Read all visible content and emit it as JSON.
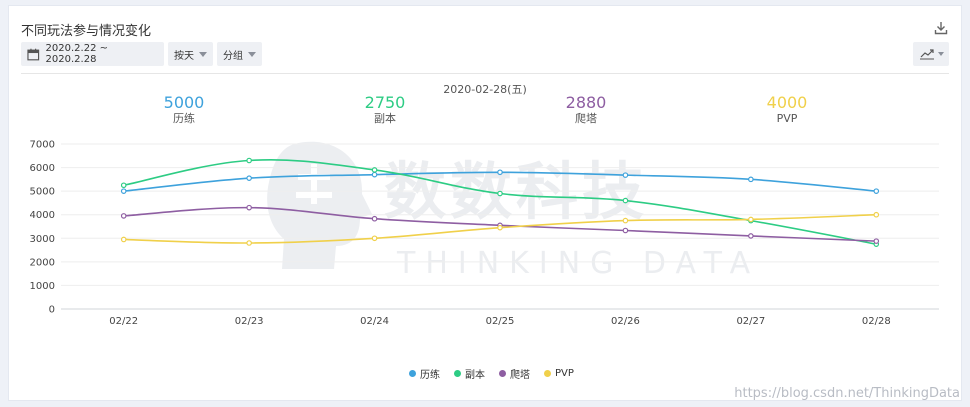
{
  "header": {
    "title": "不同玩法参与情况变化"
  },
  "toolbar": {
    "date_range": "2020.2.22 ~ 2020.2.28",
    "granularity": "按天",
    "group": "分组"
  },
  "summary": {
    "date": "2020-02-28(五)",
    "items": [
      {
        "value": "5000",
        "name": "历练",
        "color": "#3ea2dc"
      },
      {
        "value": "2750",
        "name": "副本",
        "color": "#2dcc84"
      },
      {
        "value": "2880",
        "name": "爬塔",
        "color": "#8e5ea2"
      },
      {
        "value": "4000",
        "name": "PVP",
        "color": "#f0d04a"
      }
    ]
  },
  "watermark": {
    "cn": "数数科技",
    "en": "THINKING DATA"
  },
  "footer": {
    "note": "https://blog.csdn.net/ThinkingData"
  },
  "chart_data": {
    "type": "line",
    "categories": [
      "02/22",
      "02/23",
      "02/24",
      "02/25",
      "02/26",
      "02/27",
      "02/28"
    ],
    "ylim": [
      0,
      7000
    ],
    "yticks": [
      0,
      1000,
      2000,
      3000,
      4000,
      5000,
      6000,
      7000
    ],
    "grid": true,
    "legend_position": "bottom",
    "series": [
      {
        "name": "历练",
        "color": "#3ea2dc",
        "values": [
          5000,
          5550,
          5700,
          5800,
          5680,
          5500,
          5000
        ]
      },
      {
        "name": "副本",
        "color": "#2dcc84",
        "values": [
          5250,
          6300,
          5900,
          4900,
          4600,
          3750,
          2750
        ]
      },
      {
        "name": "爬塔",
        "color": "#8e5ea2",
        "values": [
          3950,
          4300,
          3830,
          3550,
          3330,
          3100,
          2880
        ]
      },
      {
        "name": "PVP",
        "color": "#f0d04a",
        "values": [
          2950,
          2800,
          3000,
          3450,
          3750,
          3800,
          4000
        ]
      }
    ]
  }
}
